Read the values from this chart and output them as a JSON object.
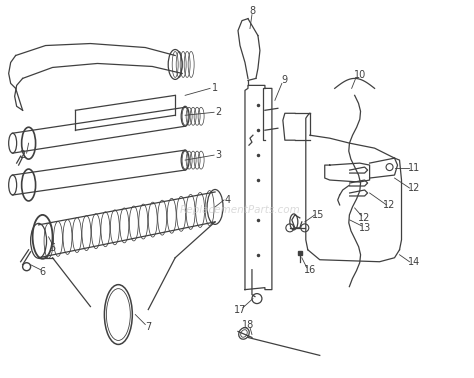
{
  "bg_color": "#ffffff",
  "line_color": "#404040",
  "watermark_color": "#c8c8c8",
  "watermark_text": "ReplacementParts.com",
  "figsize": [
    4.74,
    3.78
  ],
  "dpi": 100
}
